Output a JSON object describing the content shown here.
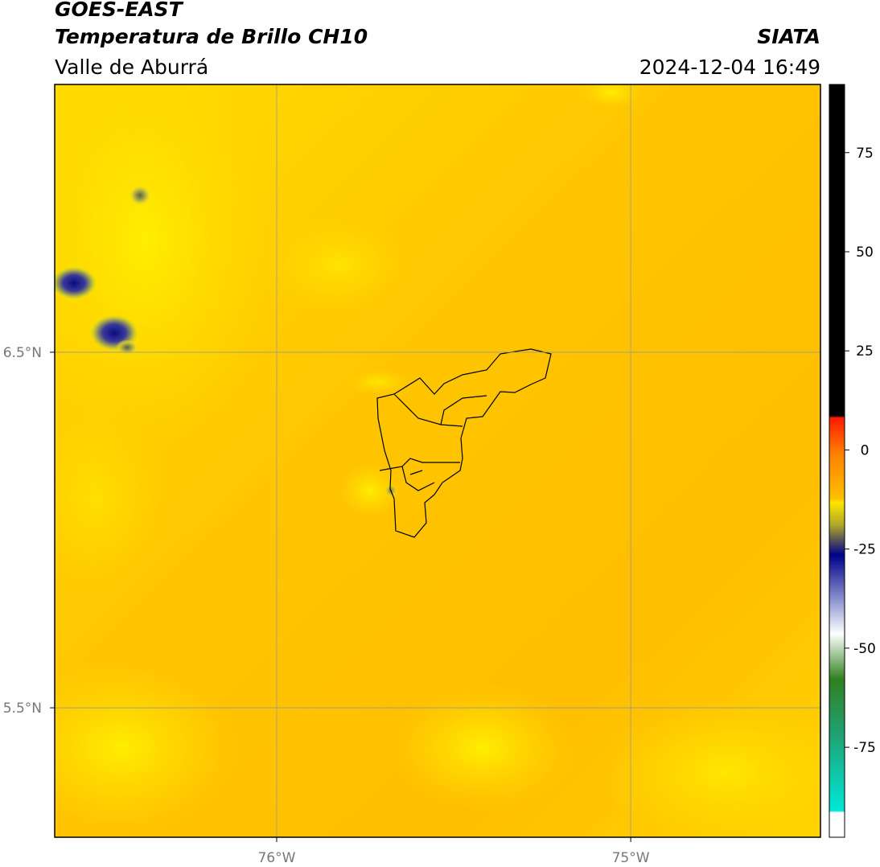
{
  "header": {
    "title": "GOES-EAST",
    "subtitle": "Temperatura de Brillo CH10",
    "region": "Valle de Aburrá",
    "source": "SIATA",
    "datetime": "2024-12-04 16:49"
  },
  "map": {
    "lonlim": [
      -76.627,
      -74.464
    ],
    "latlim": [
      5.136,
      7.253
    ],
    "lon_ticks": [
      {
        "value": -76,
        "label": "76°W"
      },
      {
        "value": -75,
        "label": "75°W"
      }
    ],
    "lat_ticks": [
      {
        "value": 6.5,
        "label": "6.5°N"
      },
      {
        "value": 5.5,
        "label": "5.5°N"
      }
    ]
  },
  "colorbar": {
    "lim": [
      -97.7,
      92.2
    ],
    "ticks": [
      75,
      50,
      25,
      0,
      -25,
      -50,
      -75
    ]
  }
}
